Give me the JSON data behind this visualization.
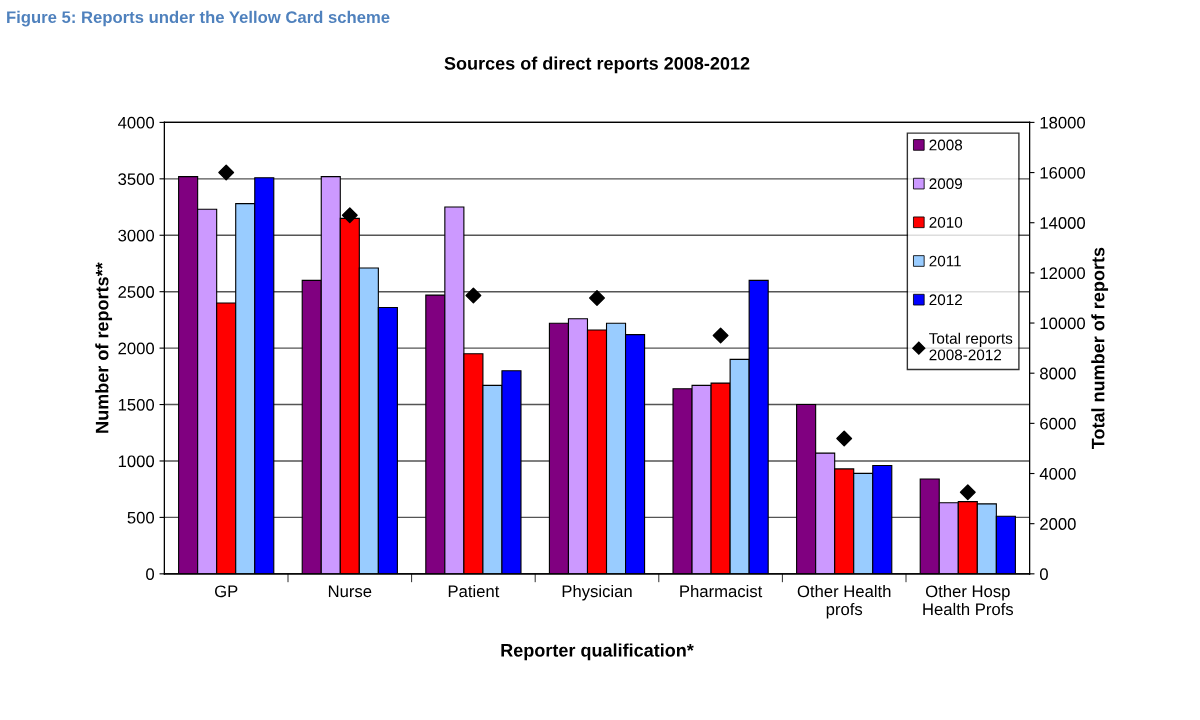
{
  "chart_data": {
    "type": "bar",
    "title": "Sources of direct reports 2008-2012",
    "xlabel": "Reporter qualification*",
    "ylabel": "Number of reports**",
    "y2label": "Total number of reports",
    "annotations": [
      "Figure 5: Reports under the Yellow Card scheme"
    ],
    "categories": [
      "GP",
      "Nurse",
      "Patient",
      "Physician",
      "Pharmacist",
      "Other Health\nprofs",
      "Other Hosp\nHealth Profs"
    ],
    "series": [
      {
        "name": "2008",
        "color": "#800080",
        "values": [
          3520,
          2600,
          2470,
          2220,
          1640,
          1500,
          840
        ]
      },
      {
        "name": "2009",
        "color": "#cc99ff",
        "values": [
          3230,
          3520,
          3250,
          2260,
          1670,
          1070,
          630
        ]
      },
      {
        "name": "2010",
        "color": "#ff0000",
        "values": [
          2400,
          3150,
          1950,
          2160,
          1690,
          930,
          640
        ]
      },
      {
        "name": "2011",
        "color": "#99ccff",
        "values": [
          3280,
          2710,
          1670,
          2220,
          1900,
          890,
          620
        ]
      },
      {
        "name": "2012",
        "color": "#0000ff",
        "values": [
          3510,
          2360,
          1800,
          2120,
          2600,
          960,
          510
        ]
      },
      {
        "name": "Total reports\n2008-2012",
        "type": "scatter",
        "axis": "y2",
        "color": "#000000",
        "marker": "diamond",
        "x": [
          "GP",
          "Nurse",
          "Patient",
          "Physician",
          "Pharmacist",
          "Other Health\nprofs",
          "Other Hosp\nHealth Profs"
        ],
        "values": [
          16000,
          14300,
          11100,
          11000,
          9500,
          5400,
          3250
        ]
      }
    ],
    "ylim": [
      0,
      4000
    ],
    "yticks": [
      0,
      500,
      1000,
      1500,
      2000,
      2500,
      3000,
      3500,
      4000
    ],
    "y2lim": [
      0,
      18000
    ],
    "y2ticks": [
      0,
      2000,
      4000,
      6000,
      8000,
      10000,
      12000,
      14000,
      16000,
      18000
    ],
    "grid": "y",
    "legend": "top right"
  }
}
